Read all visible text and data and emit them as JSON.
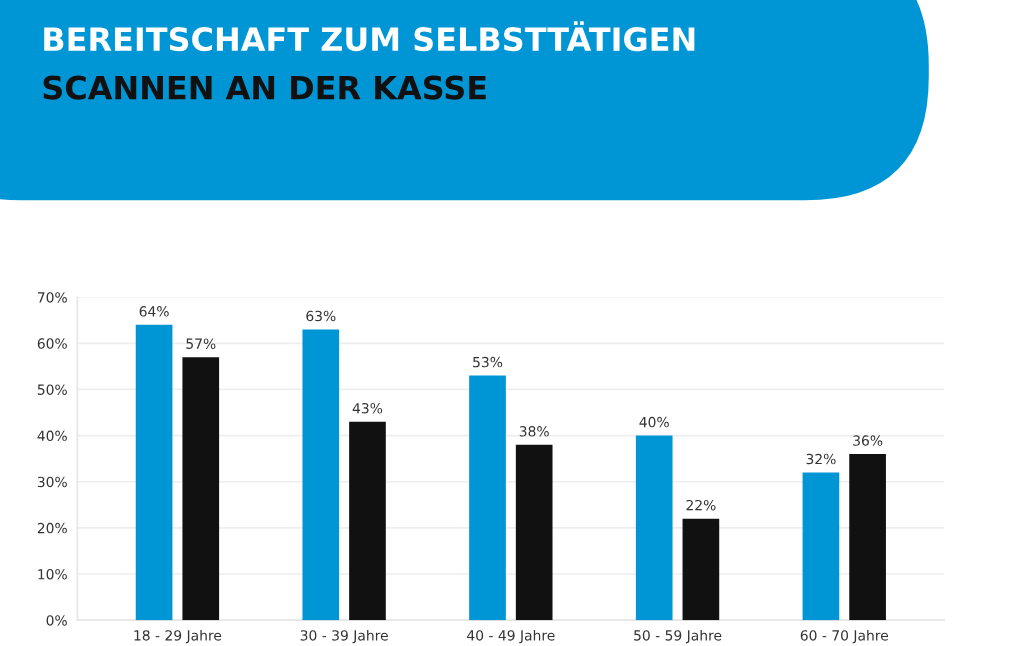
{
  "chart_data": {
    "type": "bar",
    "title": "BEREITSCHAFT ZUM SELBSTTÄTIGEN",
    "subtitle": "SCANNEN AN DER KASSE",
    "categories": [
      "18 - 29 Jahre",
      "30 - 39 Jahre",
      "40 - 49 Jahre",
      "50 - 59 Jahre",
      "60 - 70 Jahre"
    ],
    "series": [
      {
        "color": "#0096d6",
        "values": [
          64,
          63,
          53,
          40,
          32
        ],
        "value_labels": [
          "64%",
          "63%",
          "53%",
          "40%",
          "32%"
        ]
      },
      {
        "color": "#111111",
        "values": [
          57,
          43,
          38,
          22,
          36
        ],
        "value_labels": [
          "57%",
          "43%",
          "38%",
          "22%",
          "36%"
        ]
      }
    ],
    "ylim": [
      0,
      70
    ],
    "yticks": [
      {
        "value": 0,
        "label": "0%"
      },
      {
        "value": 10,
        "label": "10%"
      },
      {
        "value": 20,
        "label": "20%"
      },
      {
        "value": 30,
        "label": "30%"
      },
      {
        "value": 40,
        "label": "40%"
      },
      {
        "value": 50,
        "label": "50%"
      },
      {
        "value": 60,
        "label": "60%"
      },
      {
        "value": 70,
        "label": "70%"
      }
    ],
    "grid": "y",
    "legend": false
  }
}
